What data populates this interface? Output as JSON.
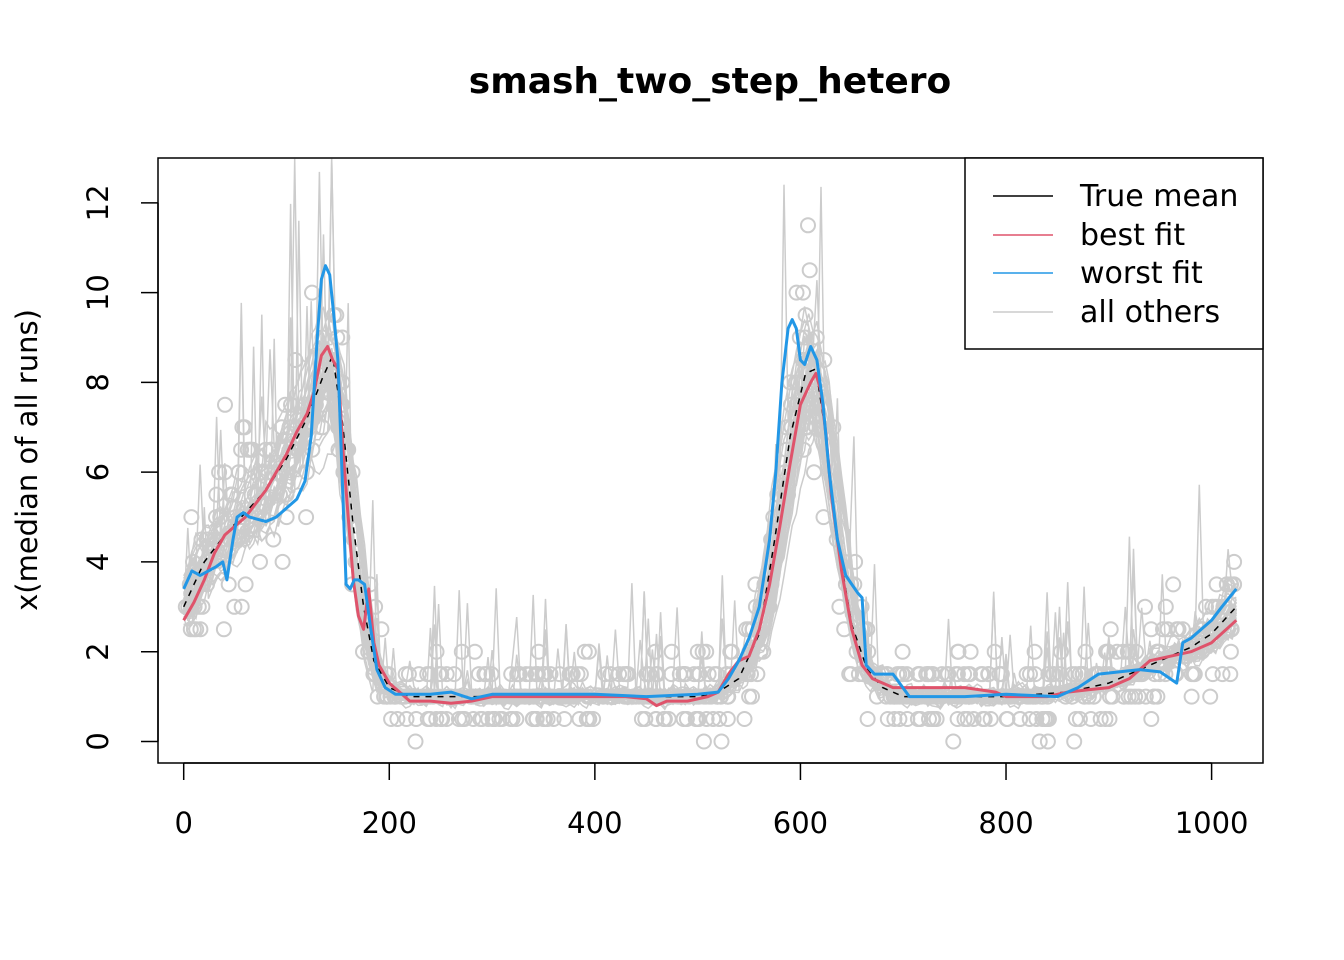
{
  "chart_data": {
    "type": "line",
    "title": "smash_two_step_hetero",
    "xlabel": "",
    "ylabel": "x(median of all runs)",
    "xlim": [
      -25,
      1050
    ],
    "ylim": [
      -0.48,
      13.0
    ],
    "x_ticks": [
      0,
      200,
      400,
      600,
      800,
      1000
    ],
    "y_ticks": [
      0,
      2,
      4,
      6,
      8,
      10,
      12
    ],
    "x_tick_labels": [
      "0",
      "200",
      "400",
      "600",
      "800",
      "1000"
    ],
    "y_tick_labels": [
      "0",
      "2",
      "4",
      "6",
      "8",
      "10",
      "12"
    ],
    "legend": {
      "position": "top-right",
      "entries": [
        {
          "label": "True mean",
          "color": "#000000"
        },
        {
          "label": "best fit",
          "color": "#DF536B"
        },
        {
          "label": "worst fit",
          "color": "#2297E6"
        },
        {
          "label": "all others",
          "color": "#CCCCCC"
        }
      ]
    },
    "series": [
      {
        "name": "True mean",
        "color": "#000000",
        "x": [
          0,
          20,
          40,
          60,
          80,
          100,
          120,
          135,
          145,
          155,
          165,
          175,
          185,
          200,
          220,
          300,
          400,
          500,
          520,
          540,
          560,
          575,
          590,
          605,
          615,
          625,
          635,
          650,
          665,
          680,
          700,
          800,
          860,
          900,
          940,
          980,
          1000,
          1024
        ],
        "y": [
          3.0,
          4.0,
          4.6,
          5.1,
          5.6,
          6.3,
          7.2,
          8.1,
          8.6,
          7.0,
          4.8,
          3.0,
          1.8,
          1.2,
          1.0,
          1.0,
          1.0,
          1.0,
          1.1,
          1.4,
          2.4,
          4.5,
          6.8,
          8.2,
          8.3,
          6.8,
          4.6,
          2.6,
          1.6,
          1.2,
          1.0,
          1.0,
          1.1,
          1.3,
          1.7,
          2.1,
          2.4,
          3.0
        ]
      },
      {
        "name": "best fit",
        "color": "#DF536B",
        "x": [
          0,
          10,
          20,
          30,
          40,
          50,
          60,
          70,
          80,
          90,
          100,
          110,
          120,
          127,
          134,
          140,
          145,
          150,
          155,
          160,
          165,
          170,
          175,
          180,
          185,
          190,
          200,
          210,
          220,
          240,
          260,
          280,
          300,
          350,
          400,
          430,
          450,
          460,
          470,
          490,
          510,
          520,
          530,
          540,
          550,
          560,
          570,
          580,
          590,
          600,
          610,
          615,
          620,
          625,
          630,
          640,
          650,
          660,
          670,
          690,
          720,
          760,
          790,
          800,
          820,
          840,
          860,
          880,
          900,
          920,
          940,
          960,
          980,
          1000,
          1024
        ],
        "y": [
          2.7,
          3.1,
          3.6,
          4.2,
          4.6,
          4.8,
          5.0,
          5.3,
          5.6,
          6.0,
          6.4,
          6.9,
          7.3,
          7.8,
          8.6,
          8.8,
          8.5,
          8.3,
          6.5,
          5.0,
          3.6,
          2.8,
          2.5,
          3.4,
          2.2,
          1.7,
          1.3,
          1.1,
          0.9,
          0.9,
          0.85,
          0.9,
          1.0,
          1.0,
          1.0,
          1.0,
          0.95,
          0.8,
          0.9,
          0.9,
          1.0,
          1.1,
          1.5,
          1.8,
          1.9,
          2.5,
          3.5,
          4.8,
          6.2,
          7.5,
          8.0,
          8.2,
          7.8,
          6.8,
          5.5,
          3.8,
          2.5,
          1.7,
          1.4,
          1.2,
          1.2,
          1.2,
          1.1,
          1.0,
          1.0,
          1.0,
          1.1,
          1.15,
          1.2,
          1.4,
          1.8,
          1.9,
          2.0,
          2.2,
          2.7
        ]
      },
      {
        "name": "worst fit",
        "color": "#2297E6",
        "x": [
          0,
          8,
          16,
          24,
          32,
          38,
          42,
          48,
          52,
          58,
          64,
          72,
          80,
          90,
          100,
          110,
          118,
          124,
          130,
          134,
          138,
          142,
          146,
          150,
          154,
          158,
          162,
          166,
          170,
          176,
          182,
          188,
          196,
          206,
          216,
          240,
          260,
          280,
          300,
          350,
          400,
          450,
          500,
          520,
          530,
          540,
          550,
          560,
          570,
          576,
          582,
          588,
          592,
          596,
          600,
          604,
          610,
          616,
          622,
          628,
          636,
          644,
          650,
          656,
          660,
          664,
          672,
          690,
          706,
          716,
          760,
          800,
          850,
          870,
          890,
          910,
          930,
          950,
          966,
          972,
          980,
          990,
          1000,
          1010,
          1024
        ],
        "y": [
          3.4,
          3.8,
          3.7,
          3.8,
          3.9,
          4.0,
          3.6,
          4.5,
          5.0,
          5.1,
          5.0,
          4.95,
          4.9,
          5.0,
          5.2,
          5.4,
          5.8,
          6.8,
          9.0,
          10.3,
          10.6,
          10.4,
          9.5,
          8.5,
          6.0,
          3.5,
          3.4,
          3.6,
          3.6,
          3.5,
          2.5,
          1.6,
          1.2,
          1.05,
          1.05,
          1.05,
          1.1,
          0.95,
          1.05,
          1.05,
          1.05,
          1.0,
          1.05,
          1.1,
          1.4,
          1.8,
          2.3,
          3.0,
          4.5,
          6.0,
          8.0,
          9.2,
          9.4,
          9.2,
          8.5,
          8.4,
          8.8,
          8.5,
          7.5,
          6.0,
          4.5,
          3.7,
          3.5,
          3.3,
          3.2,
          1.7,
          1.5,
          1.5,
          1.0,
          1.0,
          1.0,
          1.05,
          1.0,
          1.2,
          1.5,
          1.55,
          1.6,
          1.55,
          1.3,
          2.2,
          2.3,
          2.5,
          2.7,
          3.0,
          3.4
        ]
      },
      {
        "name": "all others",
        "color": "#CCCCCC",
        "description_runs": 40,
        "x": [
          0,
          20,
          40,
          60,
          80,
          100,
          120,
          130,
          140,
          150,
          160,
          170,
          180,
          190,
          200,
          220,
          300,
          400,
          500,
          520,
          540,
          560,
          575,
          590,
          600,
          610,
          620,
          630,
          640,
          650,
          665,
          680,
          700,
          800,
          860,
          900,
          940,
          980,
          1000,
          1024
        ],
        "y": [
          3.0,
          4.0,
          4.6,
          5.1,
          5.6,
          6.3,
          7.2,
          7.9,
          8.5,
          7.6,
          5.6,
          3.8,
          2.2,
          1.4,
          1.1,
          1.0,
          1.0,
          1.0,
          1.0,
          1.1,
          1.4,
          2.4,
          4.2,
          6.4,
          7.6,
          8.4,
          7.6,
          6.0,
          4.4,
          2.8,
          1.6,
          1.2,
          1.0,
          1.0,
          1.1,
          1.3,
          1.7,
          2.1,
          2.4,
          3.0
        ]
      }
    ]
  }
}
